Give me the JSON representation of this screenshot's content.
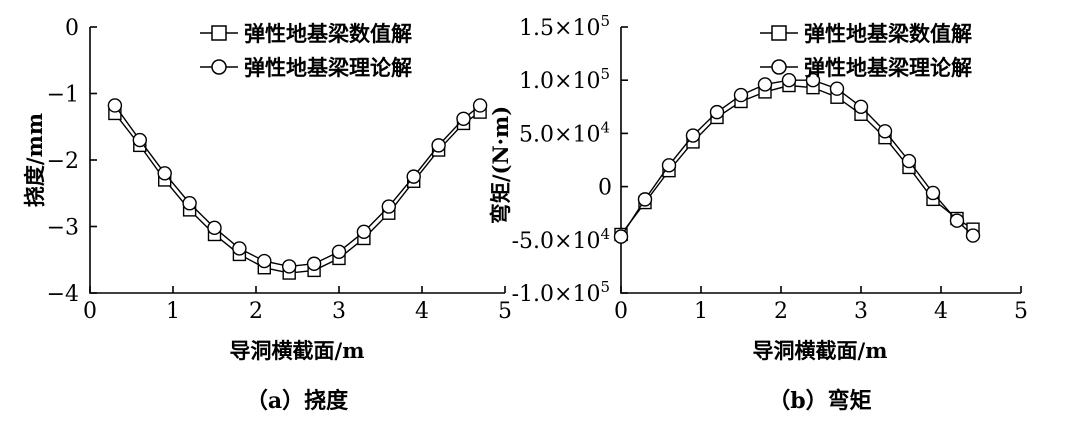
{
  "chart_data": [
    {
      "type": "scatter",
      "panel": "a",
      "caption": "（a）挠度",
      "xlabel": "导洞横截面/m",
      "ylabel": "挠度/mm",
      "xlim": [
        0,
        5
      ],
      "ylim": [
        -4,
        0
      ],
      "xticks": [
        "0",
        "1",
        "2",
        "3",
        "4",
        "5"
      ],
      "yticks": [
        "0",
        "−1",
        "−2",
        "−3",
        "−4"
      ],
      "legend_position": "top-right",
      "series": [
        {
          "name": "弹性地基梁数值解",
          "marker": "square",
          "x": [
            0.3,
            0.6,
            0.9,
            1.2,
            1.5,
            1.8,
            2.1,
            2.4,
            2.7,
            3.0,
            3.3,
            3.6,
            3.9,
            4.2,
            4.5,
            4.7
          ],
          "values": [
            -1.3,
            -1.78,
            -2.3,
            -2.75,
            -3.12,
            -3.42,
            -3.62,
            -3.7,
            -3.66,
            -3.48,
            -3.18,
            -2.8,
            -2.32,
            -1.85,
            -1.45,
            -1.28
          ]
        },
        {
          "name": "弹性地基梁理论解",
          "marker": "circle",
          "x": [
            0.3,
            0.6,
            0.9,
            1.2,
            1.5,
            1.8,
            2.1,
            2.4,
            2.7,
            3.0,
            3.3,
            3.6,
            3.9,
            4.2,
            4.5,
            4.7
          ],
          "values": [
            -1.18,
            -1.7,
            -2.2,
            -2.65,
            -3.02,
            -3.33,
            -3.52,
            -3.6,
            -3.56,
            -3.38,
            -3.08,
            -2.7,
            -2.25,
            -1.78,
            -1.38,
            -1.18
          ]
        }
      ]
    },
    {
      "type": "scatter",
      "panel": "b",
      "caption": "（b）弯矩",
      "xlabel": "导洞横截面/m",
      "ylabel": "弯矩/(N·m)",
      "xlim": [
        0,
        5
      ],
      "ylim": [
        -100000,
        150000
      ],
      "xticks": [
        "0",
        "1",
        "2",
        "3",
        "4",
        "5"
      ],
      "yticks": [
        {
          "value": 150000,
          "mant": "1.5×10",
          "exp": "5"
        },
        {
          "value": 100000,
          "mant": "1.0×10",
          "exp": "5"
        },
        {
          "value": 50000,
          "mant": "5.0×10",
          "exp": "4"
        },
        {
          "value": 0,
          "mant": "0",
          "exp": ""
        },
        {
          "value": -50000,
          "mant": "-5.0×10",
          "exp": "4"
        },
        {
          "value": -100000,
          "mant": "-1.0×10",
          "exp": "5"
        }
      ],
      "legend_position": "top-right",
      "series": [
        {
          "name": "弹性地基梁数值解",
          "marker": "square",
          "x": [
            0.0,
            0.3,
            0.6,
            0.9,
            1.2,
            1.5,
            1.8,
            2.1,
            2.4,
            2.7,
            3.0,
            3.3,
            3.6,
            3.9,
            4.2,
            4.4
          ],
          "values": [
            -45000,
            -15000,
            15000,
            42000,
            65000,
            80000,
            89000,
            95000,
            93000,
            84000,
            68000,
            46000,
            18000,
            -12000,
            -30000,
            -40000
          ]
        },
        {
          "name": "弹性地基梁理论解",
          "marker": "circle",
          "x": [
            0.0,
            0.3,
            0.6,
            0.9,
            1.2,
            1.5,
            1.8,
            2.1,
            2.4,
            2.7,
            3.0,
            3.3,
            3.6,
            3.9,
            4.2,
            4.4
          ],
          "values": [
            -47000,
            -12000,
            20000,
            48000,
            70000,
            86000,
            96000,
            100000,
            100000,
            92000,
            75000,
            52000,
            24000,
            -6000,
            -32000,
            -46000
          ]
        }
      ]
    }
  ]
}
